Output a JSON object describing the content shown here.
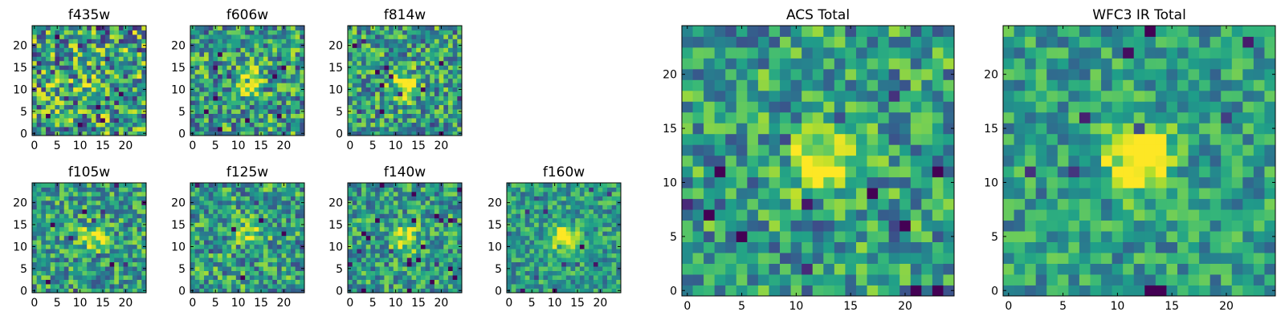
{
  "chart_data": [
    {
      "type": "heatmap",
      "title": "f435w",
      "xlim": [
        -0.5,
        24.5
      ],
      "ylim": [
        -0.5,
        24.5
      ],
      "xticks": [
        0,
        5,
        10,
        15,
        20
      ],
      "yticks": [
        0,
        5,
        10,
        15,
        20
      ],
      "colormap": "viridis",
      "source_peak": [
        12,
        11
      ],
      "source_strength": 0.1,
      "seed": 11,
      "noise": 0.55
    },
    {
      "type": "heatmap",
      "title": "f606w",
      "xlim": [
        -0.5,
        24.5
      ],
      "ylim": [
        -0.5,
        24.5
      ],
      "xticks": [
        0,
        5,
        10,
        15,
        20
      ],
      "yticks": [
        0,
        5,
        10,
        15,
        20
      ],
      "colormap": "viridis",
      "source_peak": [
        12,
        12
      ],
      "source_strength": 0.45,
      "seed": 23,
      "noise": 0.45
    },
    {
      "type": "heatmap",
      "title": "f814w",
      "xlim": [
        -0.5,
        24.5
      ],
      "ylim": [
        -0.5,
        24.5
      ],
      "xticks": [
        0,
        5,
        10,
        15,
        20
      ],
      "yticks": [
        0,
        5,
        10,
        15,
        20
      ],
      "colormap": "viridis",
      "source_peak": [
        12,
        11
      ],
      "source_strength": 0.5,
      "seed": 37,
      "noise": 0.42
    },
    {
      "type": "heatmap",
      "title": "f105w",
      "xlim": [
        -0.5,
        24.5
      ],
      "ylim": [
        -0.5,
        24.5
      ],
      "xticks": [
        0,
        5,
        10,
        15,
        20
      ],
      "yticks": [
        0,
        5,
        10,
        15,
        20
      ],
      "colormap": "viridis",
      "source_peak": [
        13,
        12
      ],
      "source_strength": 0.4,
      "seed": 41,
      "noise": 0.38
    },
    {
      "type": "heatmap",
      "title": "f125w",
      "xlim": [
        -0.5,
        24.5
      ],
      "ylim": [
        -0.5,
        24.5
      ],
      "xticks": [
        0,
        5,
        10,
        15,
        20
      ],
      "yticks": [
        0,
        5,
        10,
        15,
        20
      ],
      "colormap": "viridis",
      "source_peak": [
        13,
        13
      ],
      "source_strength": 0.35,
      "seed": 53,
      "noise": 0.4
    },
    {
      "type": "heatmap",
      "title": "f140w",
      "xlim": [
        -0.5,
        24.5
      ],
      "ylim": [
        -0.5,
        24.5
      ],
      "xticks": [
        0,
        5,
        10,
        15,
        20
      ],
      "yticks": [
        0,
        5,
        10,
        15,
        20
      ],
      "colormap": "viridis",
      "source_peak": [
        12,
        12
      ],
      "source_strength": 0.45,
      "seed": 67,
      "noise": 0.36
    },
    {
      "type": "heatmap",
      "title": "f160w",
      "xlim": [
        -0.5,
        24.5
      ],
      "ylim": [
        -0.5,
        24.5
      ],
      "xticks": [
        0,
        5,
        10,
        15,
        20
      ],
      "yticks": [
        0,
        5,
        10,
        15,
        20
      ],
      "colormap": "viridis",
      "source_peak": [
        12,
        12
      ],
      "source_strength": 0.6,
      "seed": 79,
      "noise": 0.3
    },
    {
      "type": "heatmap",
      "title": "ACS Total",
      "xlim": [
        -0.5,
        24.5
      ],
      "ylim": [
        -0.5,
        24.5
      ],
      "xticks": [
        0,
        5,
        10,
        15,
        20
      ],
      "yticks": [
        0,
        5,
        10,
        15,
        20
      ],
      "colormap": "viridis",
      "source_peak": [
        12,
        12
      ],
      "source_strength": 0.55,
      "seed": 83,
      "noise": 0.38
    },
    {
      "type": "heatmap",
      "title": "WFC3 IR Total",
      "xlim": [
        -0.5,
        24.5
      ],
      "ylim": [
        -0.5,
        24.5
      ],
      "xticks": [
        0,
        5,
        10,
        15,
        20
      ],
      "yticks": [
        0,
        5,
        10,
        15,
        20
      ],
      "colormap": "viridis",
      "source_peak": [
        12,
        12
      ],
      "source_strength": 0.7,
      "seed": 97,
      "noise": 0.3
    }
  ]
}
